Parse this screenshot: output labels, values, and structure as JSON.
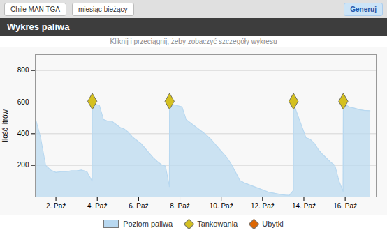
{
  "chart_data": {
    "type": "area",
    "title": "Wykres paliwa",
    "subtitle": "Kliknij i przeciągnij, żeby zobaczyć szczegóły wykresu",
    "annotations": [
      "Chile MAN TGA",
      "miesiąc bieżący",
      "Generuj"
    ],
    "ylabel": "Ilość litrów",
    "xlim": [
      0,
      16.5
    ],
    "xticks": [
      {
        "value": 1,
        "label": "2. Paź"
      },
      {
        "value": 3,
        "label": "4. Paź"
      },
      {
        "value": 5,
        "label": "6. Paź"
      },
      {
        "value": 7,
        "label": "8. Paź"
      },
      {
        "value": 9,
        "label": "10. Paź"
      },
      {
        "value": 11,
        "label": "12. Paź"
      },
      {
        "value": 13,
        "label": "14. Paź"
      },
      {
        "value": 15,
        "label": "16. Paź"
      }
    ],
    "ylim": [
      0,
      900
    ],
    "yticks": [
      200,
      400,
      600,
      800
    ],
    "grid": true,
    "legend": "bottom",
    "series": [
      {
        "name": "Poziom paliwa",
        "type": "area",
        "color": "#b8d8f0",
        "x": [
          0.0,
          0.25,
          0.5,
          0.75,
          1.0,
          1.25,
          1.5,
          1.75,
          2.0,
          2.25,
          2.5,
          2.75,
          2.76,
          3.1,
          3.3,
          3.5,
          3.7,
          3.9,
          4.1,
          4.3,
          4.5,
          4.7,
          4.9,
          5.1,
          5.3,
          5.5,
          5.7,
          5.9,
          6.1,
          6.3,
          6.49,
          6.5,
          7.1,
          7.3,
          7.5,
          7.7,
          7.9,
          8.1,
          8.3,
          8.5,
          8.7,
          8.9,
          9.1,
          9.3,
          9.5,
          9.7,
          9.9,
          10.1,
          10.3,
          10.5,
          10.7,
          10.9,
          11.1,
          11.3,
          11.5,
          11.7,
          11.9,
          12.1,
          12.3,
          12.49,
          12.5,
          13.1,
          13.3,
          13.5,
          13.7,
          13.9,
          14.1,
          14.3,
          14.5,
          14.7,
          14.9,
          14.91,
          15.2,
          15.5,
          15.7,
          15.9,
          16.2
        ],
        "values": [
          500,
          380,
          200,
          170,
          155,
          160,
          160,
          165,
          165,
          170,
          160,
          100,
          590,
          580,
          490,
          480,
          480,
          460,
          440,
          430,
          410,
          380,
          360,
          340,
          310,
          280,
          250,
          225,
          205,
          195,
          65,
          590,
          570,
          490,
          470,
          450,
          430,
          410,
          390,
          365,
          335,
          305,
          275,
          245,
          205,
          155,
          105,
          90,
          80,
          70,
          60,
          50,
          40,
          30,
          25,
          20,
          15,
          12,
          10,
          40,
          590,
          375,
          365,
          340,
          300,
          270,
          245,
          220,
          200,
          100,
          35,
          590,
          570,
          560,
          552,
          548,
          545
        ]
      },
      {
        "name": "Tankowania",
        "type": "scatter",
        "marker": "diamond",
        "color": "#d4c020",
        "x": [
          2.76,
          6.5,
          12.5,
          14.91
        ],
        "values": [
          605,
          605,
          605,
          605
        ]
      },
      {
        "name": "Ubytki",
        "type": "scatter",
        "marker": "diamond",
        "color": "#dd6600",
        "x": [],
        "values": []
      }
    ]
  }
}
